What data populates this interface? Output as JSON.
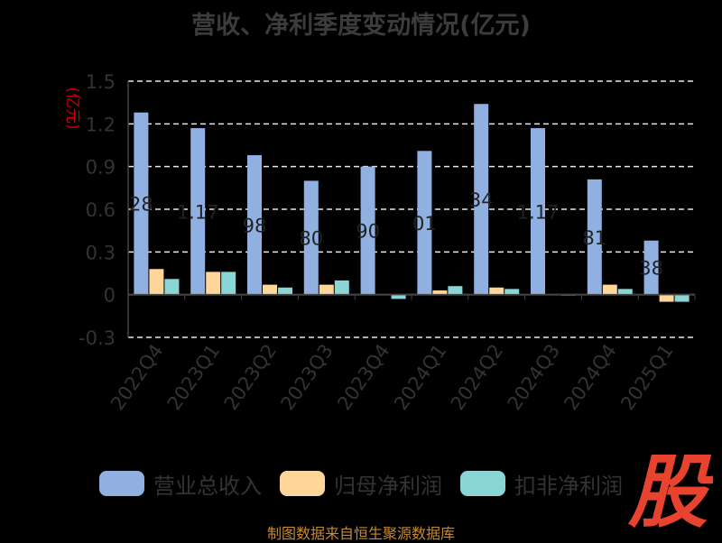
{
  "chart_data": {
    "type": "bar",
    "title": "营收、净利季度变动情况(亿元)",
    "ylabel": "(亿元)",
    "ylim": [
      -0.3,
      1.5
    ],
    "yticks": [
      "1.5",
      "1.2",
      "0.9",
      "0.6",
      "0.3",
      "0",
      "-0.3"
    ],
    "grid": true,
    "legend_position": "bottom",
    "categories": [
      "2022Q4",
      "2023Q1",
      "2023Q2",
      "2023Q3",
      "2023Q4",
      "2024Q1",
      "2024Q2",
      "2024Q3",
      "2024Q4",
      "2025Q1"
    ],
    "series": [
      {
        "name": "营业总收入",
        "color": "#8fb0e0",
        "values": [
          1.28,
          1.17,
          0.98,
          0.8,
          0.9,
          1.01,
          1.34,
          1.17,
          0.81,
          0.38
        ],
        "labels": [
          "28",
          "1.17",
          "98",
          "80",
          "90",
          "01",
          "34",
          "1.17",
          "81",
          "38"
        ]
      },
      {
        "name": "归母净利润",
        "color": "#ffd699",
        "values": [
          0.18,
          0.16,
          0.07,
          0.07,
          0.0,
          0.03,
          0.05,
          0.0,
          0.07,
          -0.05
        ]
      },
      {
        "name": "扣非净利润",
        "color": "#8ad5d6",
        "values": [
          0.11,
          0.16,
          0.05,
          0.1,
          -0.03,
          0.06,
          0.04,
          -0.005,
          0.04,
          -0.05
        ]
      }
    ]
  },
  "source": "制图数据来自恒生聚源数据库",
  "logo_text": "股"
}
